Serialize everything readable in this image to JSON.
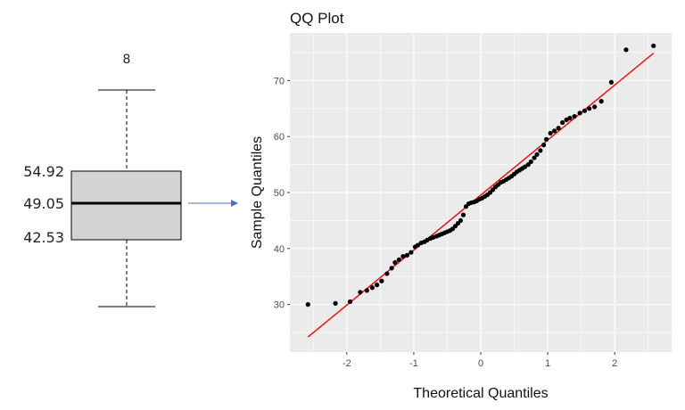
{
  "chart_data": [
    {
      "type": "box",
      "outlier_marker": "8",
      "labels": {
        "q3": "54.92",
        "median": "49.05",
        "q1": "42.53"
      }
    },
    {
      "type": "scatter",
      "title": "QQ Plot",
      "xlabel": "Theoretical Quantiles",
      "ylabel": "Sample Quantiles",
      "xlim": [
        -2.85,
        2.85
      ],
      "ylim": [
        21.5,
        78.5
      ],
      "x_ticks": [
        -2,
        -1,
        0,
        1,
        2
      ],
      "y_ticks": [
        30,
        40,
        50,
        60,
        70
      ],
      "grid": true,
      "background": "#ebebeb",
      "point_color": "#000000",
      "reference_line": {
        "x": [
          -2.58,
          2.58
        ],
        "y": [
          24.2,
          74.9
        ],
        "color": "#ff0000"
      },
      "points": [
        [
          -2.58,
          30.0
        ],
        [
          -2.17,
          30.2
        ],
        [
          -1.95,
          30.5
        ],
        [
          -1.8,
          32.2
        ],
        [
          -1.7,
          32.5
        ],
        [
          -1.62,
          33.0
        ],
        [
          -1.55,
          33.5
        ],
        [
          -1.48,
          34.2
        ],
        [
          -1.4,
          35.5
        ],
        [
          -1.33,
          36.5
        ],
        [
          -1.28,
          37.5
        ],
        [
          -1.22,
          38.0
        ],
        [
          -1.16,
          38.6
        ],
        [
          -1.1,
          38.8
        ],
        [
          -1.04,
          39.3
        ],
        [
          -0.98,
          40.3
        ],
        [
          -0.94,
          40.6
        ],
        [
          -0.89,
          41.0
        ],
        [
          -0.84,
          41.2
        ],
        [
          -0.8,
          41.5
        ],
        [
          -0.75,
          41.8
        ],
        [
          -0.71,
          42.0
        ],
        [
          -0.66,
          42.2
        ],
        [
          -0.62,
          42.4
        ],
        [
          -0.58,
          42.6
        ],
        [
          -0.54,
          42.8
        ],
        [
          -0.5,
          43.0
        ],
        [
          -0.46,
          43.2
        ],
        [
          -0.42,
          43.5
        ],
        [
          -0.38,
          44.0
        ],
        [
          -0.34,
          44.5
        ],
        [
          -0.3,
          45.0
        ],
        [
          -0.26,
          46.0
        ],
        [
          -0.22,
          47.5
        ],
        [
          -0.18,
          48.0
        ],
        [
          -0.14,
          48.2
        ],
        [
          -0.1,
          48.3
        ],
        [
          -0.06,
          48.5
        ],
        [
          -0.02,
          48.8
        ],
        [
          0.02,
          49.0
        ],
        [
          0.06,
          49.3
        ],
        [
          0.1,
          49.6
        ],
        [
          0.14,
          50.0
        ],
        [
          0.18,
          50.5
        ],
        [
          0.22,
          51.0
        ],
        [
          0.26,
          51.4
        ],
        [
          0.3,
          51.8
        ],
        [
          0.34,
          52.0
        ],
        [
          0.38,
          52.3
        ],
        [
          0.42,
          52.6
        ],
        [
          0.46,
          52.9
        ],
        [
          0.5,
          53.3
        ],
        [
          0.54,
          53.7
        ],
        [
          0.58,
          54.0
        ],
        [
          0.62,
          54.3
        ],
        [
          0.66,
          54.6
        ],
        [
          0.71,
          55.0
        ],
        [
          0.75,
          55.5
        ],
        [
          0.8,
          56.2
        ],
        [
          0.84,
          56.8
        ],
        [
          0.89,
          57.5
        ],
        [
          0.94,
          58.5
        ],
        [
          0.98,
          59.5
        ],
        [
          1.04,
          60.6
        ],
        [
          1.1,
          61.0
        ],
        [
          1.16,
          61.5
        ],
        [
          1.22,
          62.5
        ],
        [
          1.28,
          63.0
        ],
        [
          1.33,
          63.3
        ],
        [
          1.4,
          63.6
        ],
        [
          1.48,
          64.2
        ],
        [
          1.55,
          64.6
        ],
        [
          1.62,
          65.0
        ],
        [
          1.7,
          65.3
        ],
        [
          1.8,
          66.3
        ],
        [
          1.95,
          69.7
        ],
        [
          2.17,
          75.5
        ],
        [
          2.58,
          76.2
        ]
      ]
    }
  ]
}
